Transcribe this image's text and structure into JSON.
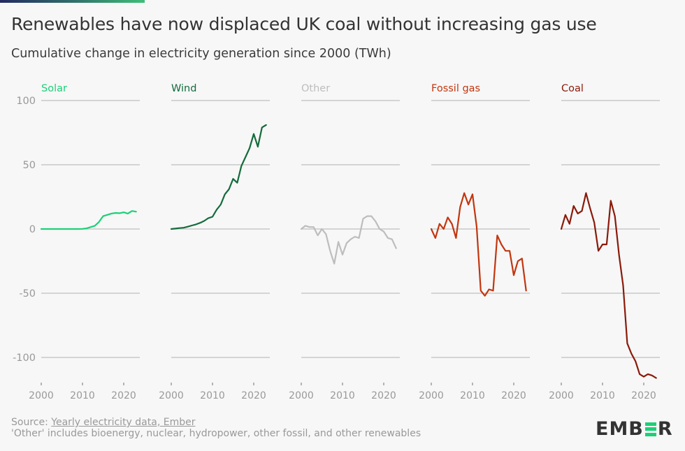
{
  "header": {
    "title": "Renewables have now displaced UK coal without increasing gas use",
    "subtitle": "Cumulative change in electricity generation since 2000 (TWh)"
  },
  "footer": {
    "source_prefix": "Source: ",
    "source_link": "Yearly electricity data, Ember",
    "note": "'Other' includes bioenergy, nuclear, hydropower, other fossil, and other renewables"
  },
  "logo": {
    "text_left": "EMB",
    "text_right": "R",
    "accent": "#1cd078"
  },
  "chart_data": {
    "type": "line",
    "title": "Renewables have now displaced UK coal without increasing gas use",
    "subtitle": "Cumulative change in electricity generation since 2000 (TWh)",
    "xlabel": "",
    "ylabel": "",
    "ylim": [
      -120,
      100
    ],
    "xlim": [
      2000,
      2023
    ],
    "y_ticks": [
      100,
      50,
      0,
      -50,
      -100
    ],
    "x_ticks": [
      2000,
      2010,
      2020
    ],
    "grid": true,
    "legend": "panel-titles",
    "x": [
      2000,
      2001,
      2002,
      2003,
      2004,
      2005,
      2006,
      2007,
      2008,
      2009,
      2010,
      2011,
      2012,
      2013,
      2014,
      2015,
      2016,
      2017,
      2018,
      2019,
      2020,
      2021,
      2022,
      2023
    ],
    "series": [
      {
        "name": "Solar",
        "color": "#1cd078",
        "values": [
          0,
          0,
          0,
          0,
          0,
          0,
          0,
          0,
          0,
          0,
          0.1,
          0.5,
          1.5,
          2.5,
          5.5,
          10,
          11,
          12,
          12.5,
          12.3,
          13,
          12,
          14,
          13.5
        ]
      },
      {
        "name": "Wind",
        "color": "#136b3b",
        "values": [
          0,
          0.3,
          0.7,
          1,
          1.8,
          2.7,
          3.6,
          4.8,
          6.3,
          8.5,
          9.5,
          15,
          19,
          27,
          31,
          39,
          36,
          49,
          56,
          63,
          74,
          64,
          79,
          81
        ]
      },
      {
        "name": "Other",
        "color": "#bdbdbd",
        "values": [
          0,
          2.5,
          1.5,
          1.5,
          -5,
          0,
          -4,
          -17,
          -27,
          -10,
          -20,
          -11,
          -8,
          -6,
          -7,
          8,
          10,
          10,
          6,
          0,
          -2,
          -7,
          -8,
          -15
        ]
      },
      {
        "name": "Fossil gas",
        "color": "#c2360f",
        "values": [
          0,
          -7,
          4,
          0,
          9,
          4,
          -7,
          17,
          28,
          19,
          27,
          2,
          -48,
          -52,
          -47,
          -48,
          -5,
          -12,
          -17,
          -17,
          -36,
          -25,
          -23,
          -48
        ]
      },
      {
        "name": "Coal",
        "color": "#8a1a0a",
        "values": [
          0,
          11,
          4,
          18,
          12,
          14,
          28,
          16,
          5,
          -17,
          -12,
          -12,
          22,
          10,
          -20,
          -44,
          -89,
          -97,
          -103,
          -113,
          -115,
          -113,
          -114,
          -116
        ]
      }
    ]
  }
}
